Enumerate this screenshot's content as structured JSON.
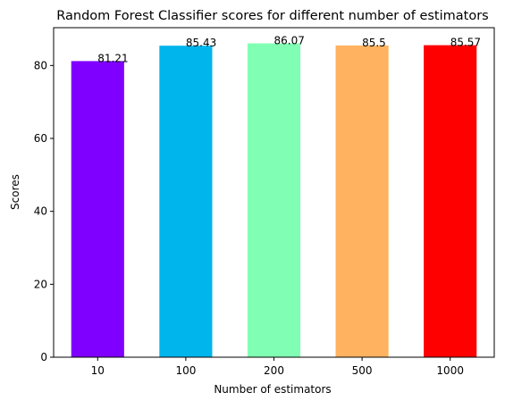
{
  "chart_data": {
    "type": "bar",
    "title": "Random Forest Classifier scores for different number of estimators",
    "xlabel": "Number of estimators",
    "ylabel": "Scores",
    "categories": [
      "10",
      "100",
      "200",
      "500",
      "1000"
    ],
    "values": [
      81.21,
      85.43,
      86.07,
      85.5,
      85.57
    ],
    "data_labels": [
      "81.21",
      "85.43",
      "86.07",
      "85.5",
      "85.57"
    ],
    "colors": [
      "#8000ff",
      "#00b5eb",
      "#80ffb4",
      "#ffb360",
      "#ff0000"
    ],
    "yticks": [
      0,
      20,
      40,
      60,
      80
    ],
    "ytick_labels": [
      "0",
      "20",
      "40",
      "60",
      "80"
    ],
    "ylim": [
      0,
      90.37
    ],
    "grid": false,
    "legend": "none"
  }
}
